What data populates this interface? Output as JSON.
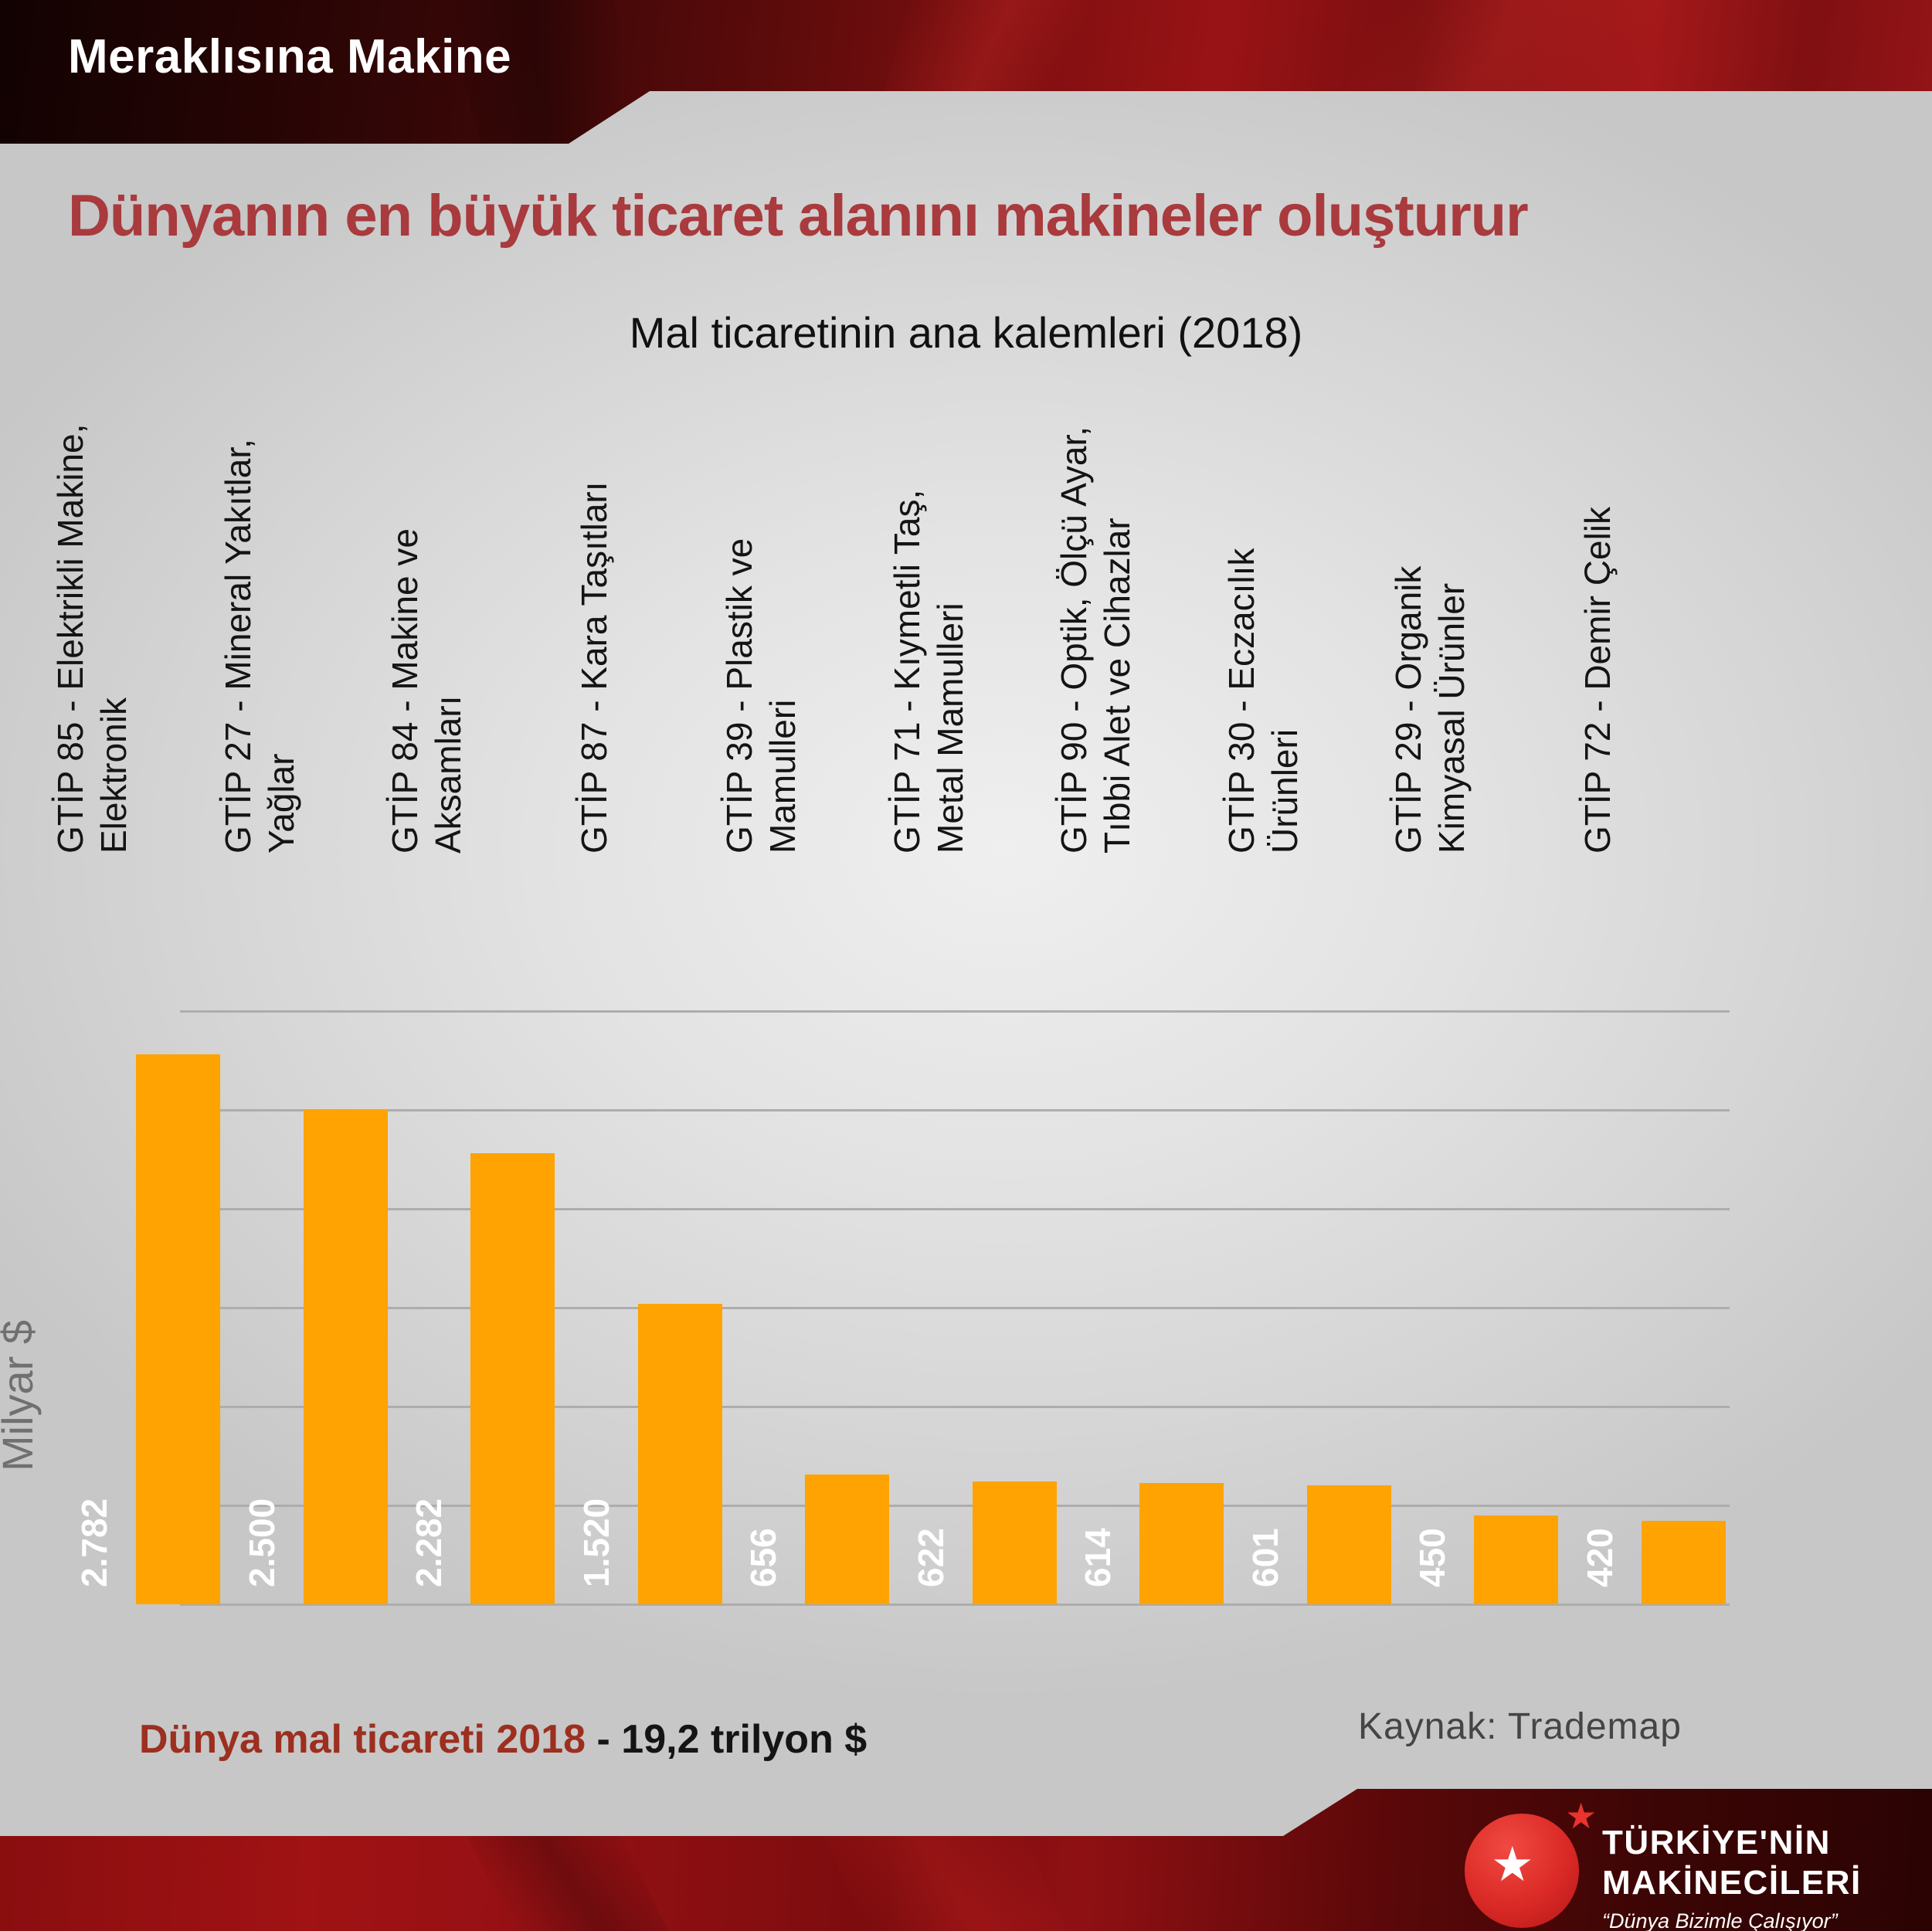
{
  "banner": {
    "title": "Meraklısına Makine"
  },
  "header": {
    "title": "Dünyanın en büyük ticaret alanını makineler oluşturur"
  },
  "chart_data": {
    "type": "bar",
    "title": "Mal ticaretinin ana kalemleri (2018)",
    "xlabel": "",
    "ylabel": "Milyar $",
    "ylim": [
      0,
      3000
    ],
    "gridline_step": 500,
    "grid": true,
    "legend": false,
    "bar_color": "#ffa302",
    "gridline_color": "#adadad",
    "categories": [
      [
        "GTİP 85 - Elektrikli Makine,",
        "Elektronik"
      ],
      [
        "GTİP 27 - Mineral Yakıtlar,",
        "Yağlar"
      ],
      [
        "GTİP 84 - Makine ve",
        "Aksamları"
      ],
      [
        "GTİP 87 - Kara Taşıtları"
      ],
      [
        "GTİP 39 - Plastik ve",
        "Mamulleri"
      ],
      [
        "GTİP 71 - Kıymetli Taş,",
        "Metal Mamulleri"
      ],
      [
        "GTİP 90 - Optik, Ölçü Ayar,",
        "Tıbbi Alet ve Cihazlar"
      ],
      [
        "GTİP 30 - Eczacılık",
        "Ürünleri"
      ],
      [
        "GTİP 29 - Organik",
        "Kimyasal Ürünler"
      ],
      [
        "GTİP 72 - Demir Çelik"
      ]
    ],
    "values": [
      2782,
      2500,
      2282,
      1520,
      656,
      622,
      614,
      601,
      450,
      420
    ],
    "value_labels": [
      "2.782",
      "2.500",
      "2.282",
      "1.520",
      "656",
      "622",
      "614",
      "601",
      "450",
      "420"
    ]
  },
  "footer": {
    "note_red": "Dünya mal ticareti 2018",
    "note_black": " - 19,2 trilyon $",
    "source": "Kaynak: Trademap"
  },
  "logo": {
    "line1": "TÜRKİYE'NİN",
    "line2": "MAKİNECİLERİ",
    "tagline": "“Dünya Bizimle Çalışıyor”",
    "star": "★"
  }
}
